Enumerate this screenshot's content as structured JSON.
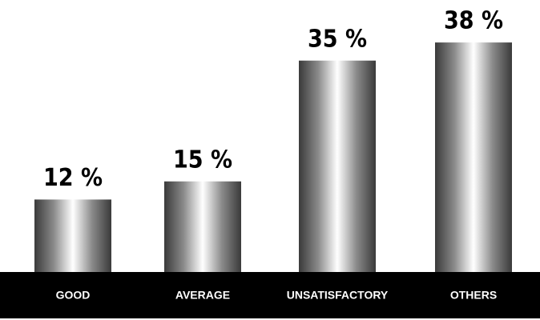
{
  "chart_data": {
    "type": "bar",
    "categories": [
      "GOOD",
      "AVERAGE",
      "UNSATISFACTORY",
      "OTHERS"
    ],
    "values": [
      12,
      15,
      35,
      38
    ],
    "value_labels": [
      "12 %",
      "15 %",
      "35 %",
      "38 %"
    ]
  }
}
